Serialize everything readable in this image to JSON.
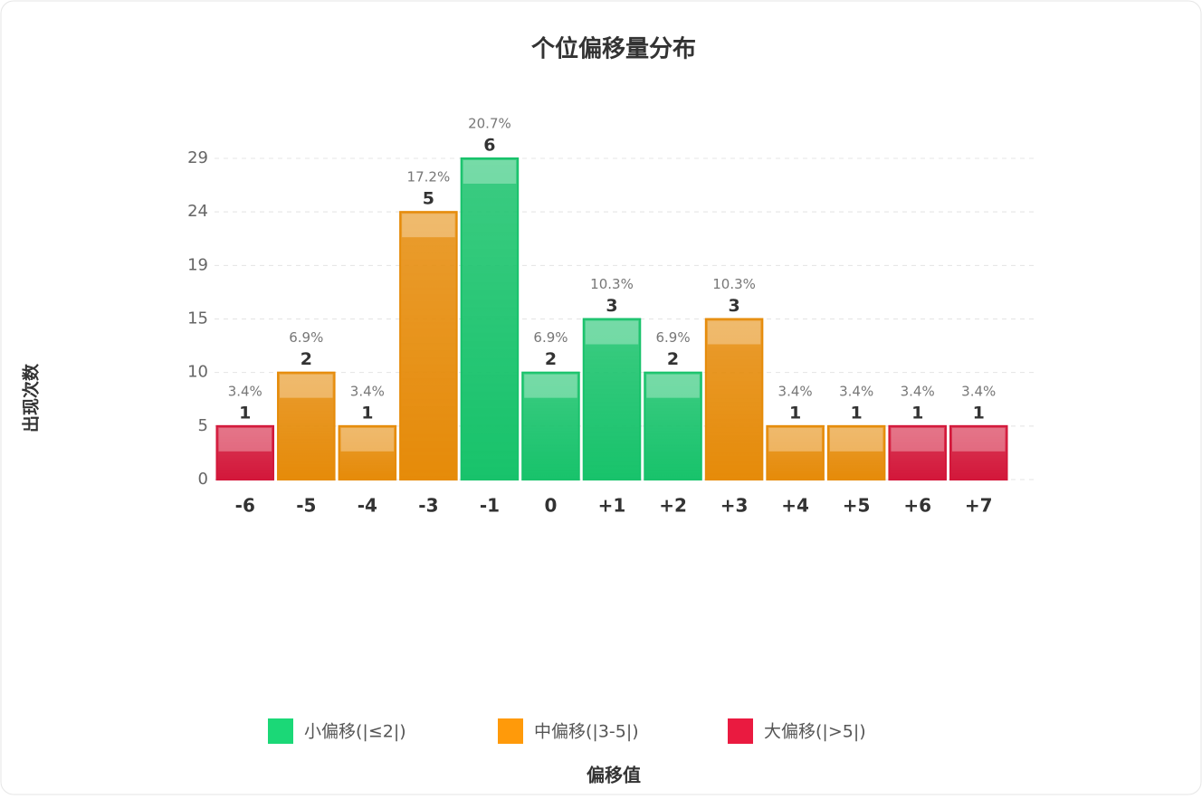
{
  "chart_data": {
    "type": "bar",
    "title": "个位偏移量分布",
    "x_label": "偏移值",
    "y_label": "出现次数",
    "categories": [
      "-6",
      "-5",
      "-4",
      "-3",
      "-1",
      "0",
      "+1",
      "+2",
      "+3",
      "+4",
      "+5",
      "+6",
      "+7"
    ],
    "values": [
      1,
      2,
      1,
      5,
      6,
      2,
      3,
      2,
      3,
      1,
      1,
      1,
      1
    ],
    "percent_labels": [
      "3.4%",
      "6.9%",
      "3.4%",
      "17.2%",
      "20.7%",
      "6.9%",
      "10.3%",
      "6.9%",
      "10.3%",
      "3.4%",
      "3.4%",
      "3.4%",
      "3.4%"
    ],
    "bar_groups": [
      2,
      1,
      1,
      1,
      0,
      0,
      0,
      0,
      1,
      1,
      1,
      2,
      2
    ],
    "legend": [
      {
        "name": "小偏移(|≤2|)",
        "color": "#1bd877"
      },
      {
        "name": "中偏移(|3-5|)",
        "color": "#ff9a0a"
      },
      {
        "name": "大偏移(|>5|)",
        "color": "#ea1a40"
      }
    ],
    "ylim": [
      0,
      6
    ],
    "yticks": [
      0,
      {
        "value": 1,
        "label": "5"
      },
      {
        "value": 2,
        "label": "10"
      },
      {
        "value": 3,
        "label": "15"
      },
      {
        "value": 4,
        "label": "19"
      },
      {
        "value": 5,
        "label": "24"
      },
      {
        "value": 6,
        "label": "29"
      }
    ],
    "grid": true
  }
}
